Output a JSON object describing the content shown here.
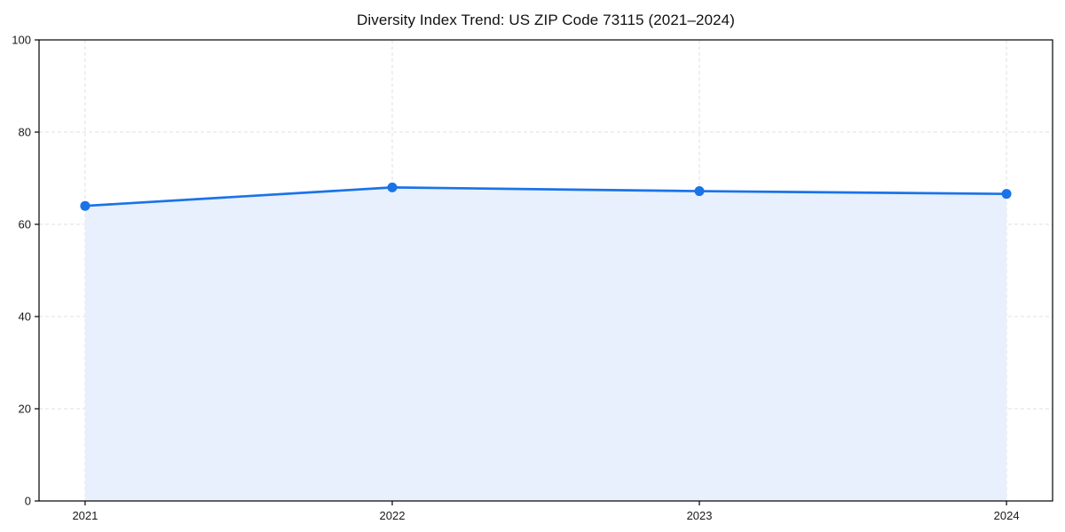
{
  "figure": {
    "background": "#ffffff"
  },
  "chart_data": {
    "type": "area",
    "title": "Diversity Index Trend: US ZIP Code 73115 (2021–2024)",
    "x": [
      2021,
      2022,
      2023,
      2024
    ],
    "series": [
      {
        "name": "Diversity Index",
        "values": [
          64,
          68,
          67.2,
          66.6
        ]
      }
    ],
    "xlabel": "",
    "ylabel": "",
    "xlim_padding_units": 0.15,
    "ylim": [
      0,
      100
    ],
    "yticks": [
      0,
      20,
      40,
      60,
      80,
      100
    ],
    "xticks": [
      "2021",
      "2022",
      "2023",
      "2024"
    ],
    "grid": true,
    "grid_style": "dashed",
    "legend": false,
    "marker": "circle",
    "colors": {
      "line": "#1a73e8",
      "marker": "#1a73e8",
      "fill": "#e8f0fd",
      "grid": "#e0e0e0",
      "spine": "#000000",
      "tick": "#000000",
      "tick_label": "#1a1a1a",
      "title": "#111111",
      "background": "#ffffff"
    }
  }
}
